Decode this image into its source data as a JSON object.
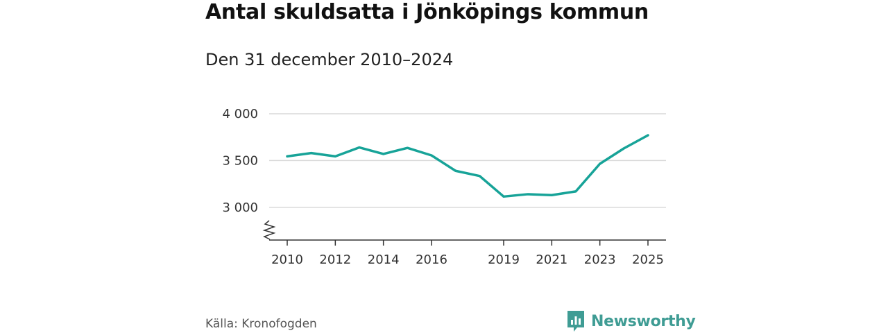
{
  "header": {
    "title": "Antal skuldsatta i Jönköpings kommun",
    "subtitle": "Den 31 december 2010–2024"
  },
  "footer": {
    "source": "Källa: Kronofogden",
    "brand": "Newsworthy"
  },
  "colors": {
    "line": "#17a398",
    "grid": "#d9d9d9",
    "axis": "#333333",
    "brand": "#3f9c94"
  },
  "chart_data": {
    "type": "line",
    "title": "Antal skuldsatta i Jönköpings kommun",
    "subtitle": "Den 31 december 2010–2024",
    "xlabel": "",
    "ylabel": "",
    "x": [
      2010,
      2011,
      2012,
      2013,
      2014,
      2015,
      2016,
      2017,
      2018,
      2019,
      2020,
      2021,
      2022,
      2023,
      2024,
      2025
    ],
    "series": [
      {
        "name": "Antal skuldsatta",
        "values": [
          3545,
          3580,
          3545,
          3640,
          3570,
          3635,
          3555,
          3390,
          3335,
          3115,
          3140,
          3130,
          3170,
          3465,
          3630,
          3770
        ]
      }
    ],
    "xticks": [
      2010,
      2012,
      2014,
      2016,
      2019,
      2021,
      2023,
      2025
    ],
    "xtick_labels": [
      "2010",
      "2012",
      "2014",
      "2016",
      "2019",
      "2021",
      "2023",
      "2025"
    ],
    "yticks": [
      3000,
      3500,
      4000
    ],
    "ytick_labels": [
      "3 000",
      "3 500",
      "4 000"
    ],
    "ylim": [
      2650,
      4000
    ],
    "xlim": [
      2010,
      2025
    ],
    "axis_break": true,
    "grid": true,
    "legend": "none"
  }
}
